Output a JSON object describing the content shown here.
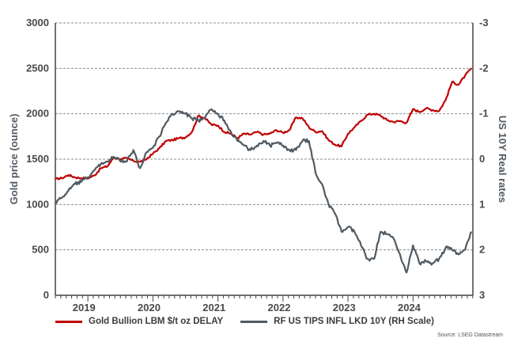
{
  "chart_data": {
    "type": "line",
    "title": "",
    "ylabel_left": "Gold price (ounce)",
    "ylabel_right": "US 10Y Real rates",
    "ylim_left": [
      0,
      3000
    ],
    "ylim_right_inverted": [
      3,
      -3
    ],
    "yticks_left": [
      "0",
      "500",
      "1000",
      "1500",
      "2000",
      "2500",
      "3000"
    ],
    "yticks_right": [
      "3",
      "2",
      "1",
      "0",
      "-1",
      "-2",
      "-3"
    ],
    "xlim": [
      2018.5,
      2024.92
    ],
    "xticks": [
      {
        "label": "2019",
        "pos": 2019.0
      },
      {
        "label": "2020",
        "pos": 2020.0
      },
      {
        "label": "2021",
        "pos": 2021.0
      },
      {
        "label": "2022",
        "pos": 2022.0
      },
      {
        "label": "2023",
        "pos": 2023.0
      },
      {
        "label": "2024",
        "pos": 2024.0
      }
    ],
    "series": [
      {
        "name": "Gold Bullion LBM $/t oz DELAY",
        "axis": "left",
        "color": "#c00000",
        "x": [
          2018.5,
          2018.6,
          2018.7,
          2018.8,
          2018.9,
          2019.0,
          2019.1,
          2019.2,
          2019.3,
          2019.4,
          2019.5,
          2019.6,
          2019.7,
          2019.8,
          2019.9,
          2020.0,
          2020.1,
          2020.2,
          2020.3,
          2020.4,
          2020.5,
          2020.6,
          2020.7,
          2020.8,
          2020.9,
          2021.0,
          2021.1,
          2021.2,
          2021.3,
          2021.4,
          2021.5,
          2021.6,
          2021.7,
          2021.8,
          2021.9,
          2022.0,
          2022.1,
          2022.2,
          2022.3,
          2022.4,
          2022.5,
          2022.6,
          2022.7,
          2022.8,
          2022.9,
          2023.0,
          2023.1,
          2023.2,
          2023.3,
          2023.4,
          2023.5,
          2023.6,
          2023.7,
          2023.8,
          2023.9,
          2024.0,
          2024.1,
          2024.2,
          2024.3,
          2024.4,
          2024.5,
          2024.6,
          2024.7,
          2024.8,
          2024.9
        ],
        "values": [
          1280,
          1290,
          1325,
          1300,
          1290,
          1290,
          1320,
          1400,
          1420,
          1520,
          1500,
          1510,
          1480,
          1470,
          1500,
          1560,
          1620,
          1700,
          1710,
          1730,
          1740,
          1800,
          1980,
          1950,
          1880,
          1870,
          1800,
          1780,
          1730,
          1780,
          1770,
          1800,
          1770,
          1780,
          1820,
          1790,
          1820,
          1960,
          1950,
          1850,
          1800,
          1810,
          1710,
          1660,
          1640,
          1780,
          1850,
          1920,
          1990,
          2000,
          1980,
          1930,
          1910,
          1920,
          1900,
          2050,
          2020,
          2060,
          2040,
          2030,
          2150,
          2350,
          2320,
          2420,
          2500
        ]
      },
      {
        "name": "RF US TIPS INFL LKD 10Y (RH Scale)",
        "axis": "right",
        "color": "#505a63",
        "x": [
          2018.5,
          2018.6,
          2018.7,
          2018.8,
          2018.9,
          2019.0,
          2019.1,
          2019.2,
          2019.3,
          2019.4,
          2019.5,
          2019.6,
          2019.7,
          2019.8,
          2019.9,
          2020.0,
          2020.1,
          2020.2,
          2020.3,
          2020.4,
          2020.5,
          2020.6,
          2020.7,
          2020.8,
          2020.9,
          2021.0,
          2021.1,
          2021.2,
          2021.3,
          2021.4,
          2021.5,
          2021.6,
          2021.7,
          2021.8,
          2021.9,
          2022.0,
          2022.1,
          2022.2,
          2022.3,
          2022.4,
          2022.5,
          2022.6,
          2022.7,
          2022.8,
          2022.9,
          2023.0,
          2023.1,
          2023.2,
          2023.3,
          2023.4,
          2023.5,
          2023.6,
          2023.7,
          2023.8,
          2023.9,
          2024.0,
          2024.1,
          2024.2,
          2024.3,
          2024.4,
          2024.5,
          2024.6,
          2024.7,
          2024.8,
          2024.9
        ],
        "values": [
          0.95,
          0.85,
          0.7,
          0.55,
          0.5,
          0.4,
          0.25,
          0.1,
          0.05,
          -0.05,
          0.05,
          0.05,
          -0.2,
          0.2,
          -0.15,
          -0.25,
          -0.5,
          -0.8,
          -1.0,
          -1.05,
          -1.0,
          -0.9,
          -0.85,
          -0.9,
          -1.1,
          -1.0,
          -0.85,
          -0.6,
          -0.4,
          -0.3,
          -0.2,
          -0.3,
          -0.4,
          -0.3,
          -0.35,
          -0.3,
          -0.2,
          -0.2,
          -0.4,
          -0.4,
          0.3,
          0.55,
          1.0,
          1.2,
          1.6,
          1.5,
          1.6,
          1.9,
          2.2,
          2.2,
          1.6,
          1.65,
          1.75,
          2.1,
          2.5,
          1.9,
          2.3,
          2.25,
          2.3,
          2.2,
          1.95,
          2.0,
          2.1,
          2.0,
          1.6
        ]
      }
    ]
  },
  "source_text": "Source: LSEG Datastream"
}
